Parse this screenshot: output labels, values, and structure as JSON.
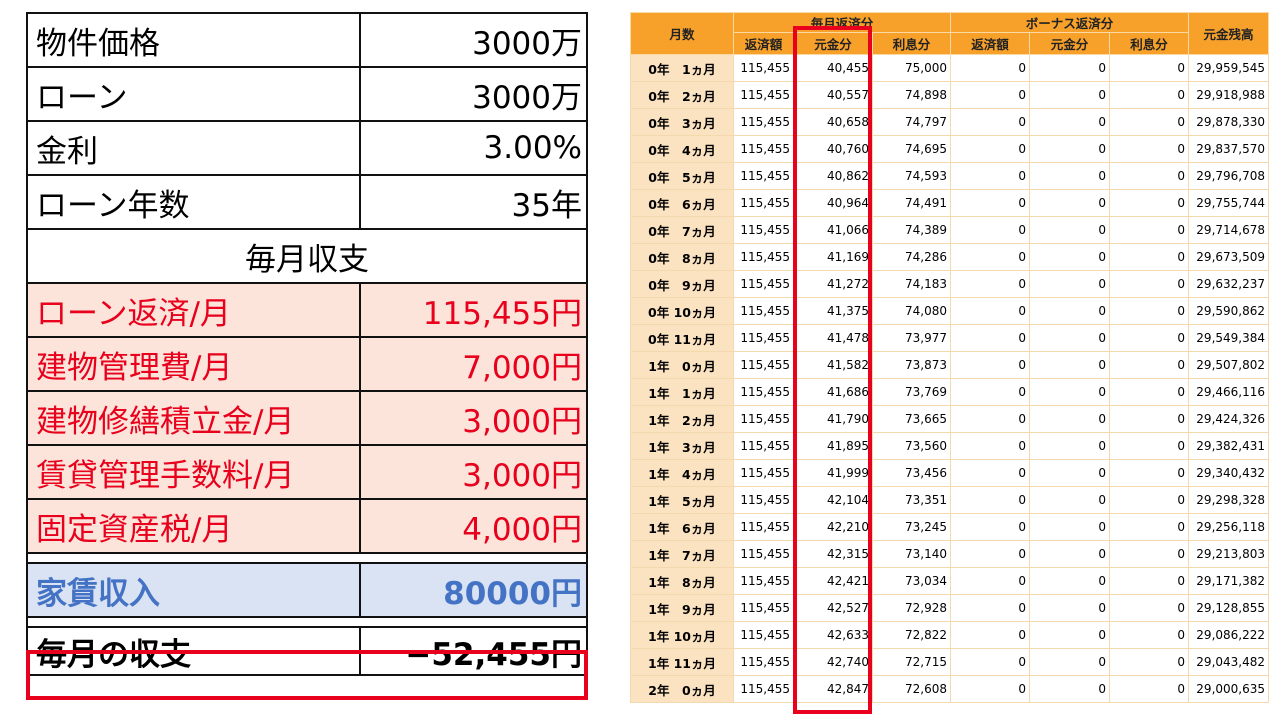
{
  "summary": {
    "rows": [
      {
        "label": "物件価格",
        "value": "3000万"
      },
      {
        "label": "ローン",
        "value": "3000万"
      },
      {
        "label": "金利",
        "value": "3.00%"
      },
      {
        "label": "ローン年数",
        "value": "35年"
      }
    ],
    "section_title": "毎月収支",
    "expenses": [
      {
        "label": "ローン返済/月",
        "value": "115,455円"
      },
      {
        "label": "建物管理費/月",
        "value": "7,000円"
      },
      {
        "label": "建物修繕積立金/月",
        "value": "3,000円"
      },
      {
        "label": "賃貸管理手数料/月",
        "value": "3,000円"
      },
      {
        "label": "固定資産税/月",
        "value": "4,000円"
      }
    ],
    "income": {
      "label": "家賃収入",
      "value": "80000円"
    },
    "net": {
      "label": "毎月の収支",
      "value": "−52,455円"
    }
  },
  "schedule": {
    "headers": {
      "month": "月数",
      "monthly_group": "毎月返済分",
      "bonus_group": "ボーナス返済分",
      "balance": "元金残高",
      "payment": "返済額",
      "principal": "元金分",
      "interest": "利息分",
      "bonus_payment": "返済額",
      "bonus_principal": "元金分",
      "bonus_interest": "利息分"
    },
    "highlight_color": "#e8001c",
    "header_color": "#f7a12b",
    "rows": [
      [
        "0年　1ヵ月",
        "115,455",
        "40,455",
        "75,000",
        "0",
        "0",
        "0",
        "29,959,545"
      ],
      [
        "0年　2ヵ月",
        "115,455",
        "40,557",
        "74,898",
        "0",
        "0",
        "0",
        "29,918,988"
      ],
      [
        "0年　3ヵ月",
        "115,455",
        "40,658",
        "74,797",
        "0",
        "0",
        "0",
        "29,878,330"
      ],
      [
        "0年　4ヵ月",
        "115,455",
        "40,760",
        "74,695",
        "0",
        "0",
        "0",
        "29,837,570"
      ],
      [
        "0年　5ヵ月",
        "115,455",
        "40,862",
        "74,593",
        "0",
        "0",
        "0",
        "29,796,708"
      ],
      [
        "0年　6ヵ月",
        "115,455",
        "40,964",
        "74,491",
        "0",
        "0",
        "0",
        "29,755,744"
      ],
      [
        "0年　7ヵ月",
        "115,455",
        "41,066",
        "74,389",
        "0",
        "0",
        "0",
        "29,714,678"
      ],
      [
        "0年　8ヵ月",
        "115,455",
        "41,169",
        "74,286",
        "0",
        "0",
        "0",
        "29,673,509"
      ],
      [
        "0年　9ヵ月",
        "115,455",
        "41,272",
        "74,183",
        "0",
        "0",
        "0",
        "29,632,237"
      ],
      [
        "0年 10ヵ月",
        "115,455",
        "41,375",
        "74,080",
        "0",
        "0",
        "0",
        "29,590,862"
      ],
      [
        "0年 11ヵ月",
        "115,455",
        "41,478",
        "73,977",
        "0",
        "0",
        "0",
        "29,549,384"
      ],
      [
        "1年　0ヵ月",
        "115,455",
        "41,582",
        "73,873",
        "0",
        "0",
        "0",
        "29,507,802"
      ],
      [
        "1年　1ヵ月",
        "115,455",
        "41,686",
        "73,769",
        "0",
        "0",
        "0",
        "29,466,116"
      ],
      [
        "1年　2ヵ月",
        "115,455",
        "41,790",
        "73,665",
        "0",
        "0",
        "0",
        "29,424,326"
      ],
      [
        "1年　3ヵ月",
        "115,455",
        "41,895",
        "73,560",
        "0",
        "0",
        "0",
        "29,382,431"
      ],
      [
        "1年　4ヵ月",
        "115,455",
        "41,999",
        "73,456",
        "0",
        "0",
        "0",
        "29,340,432"
      ],
      [
        "1年　5ヵ月",
        "115,455",
        "42,104",
        "73,351",
        "0",
        "0",
        "0",
        "29,298,328"
      ],
      [
        "1年　6ヵ月",
        "115,455",
        "42,210",
        "73,245",
        "0",
        "0",
        "0",
        "29,256,118"
      ],
      [
        "1年　7ヵ月",
        "115,455",
        "42,315",
        "73,140",
        "0",
        "0",
        "0",
        "29,213,803"
      ],
      [
        "1年　8ヵ月",
        "115,455",
        "42,421",
        "73,034",
        "0",
        "0",
        "0",
        "29,171,382"
      ],
      [
        "1年　9ヵ月",
        "115,455",
        "42,527",
        "72,928",
        "0",
        "0",
        "0",
        "29,128,855"
      ],
      [
        "1年 10ヵ月",
        "115,455",
        "42,633",
        "72,822",
        "0",
        "0",
        "0",
        "29,086,222"
      ],
      [
        "1年 11ヵ月",
        "115,455",
        "42,740",
        "72,715",
        "0",
        "0",
        "0",
        "29,043,482"
      ],
      [
        "2年　0ヵ月",
        "115,455",
        "42,847",
        "72,608",
        "0",
        "0",
        "0",
        "29,000,635"
      ]
    ]
  }
}
